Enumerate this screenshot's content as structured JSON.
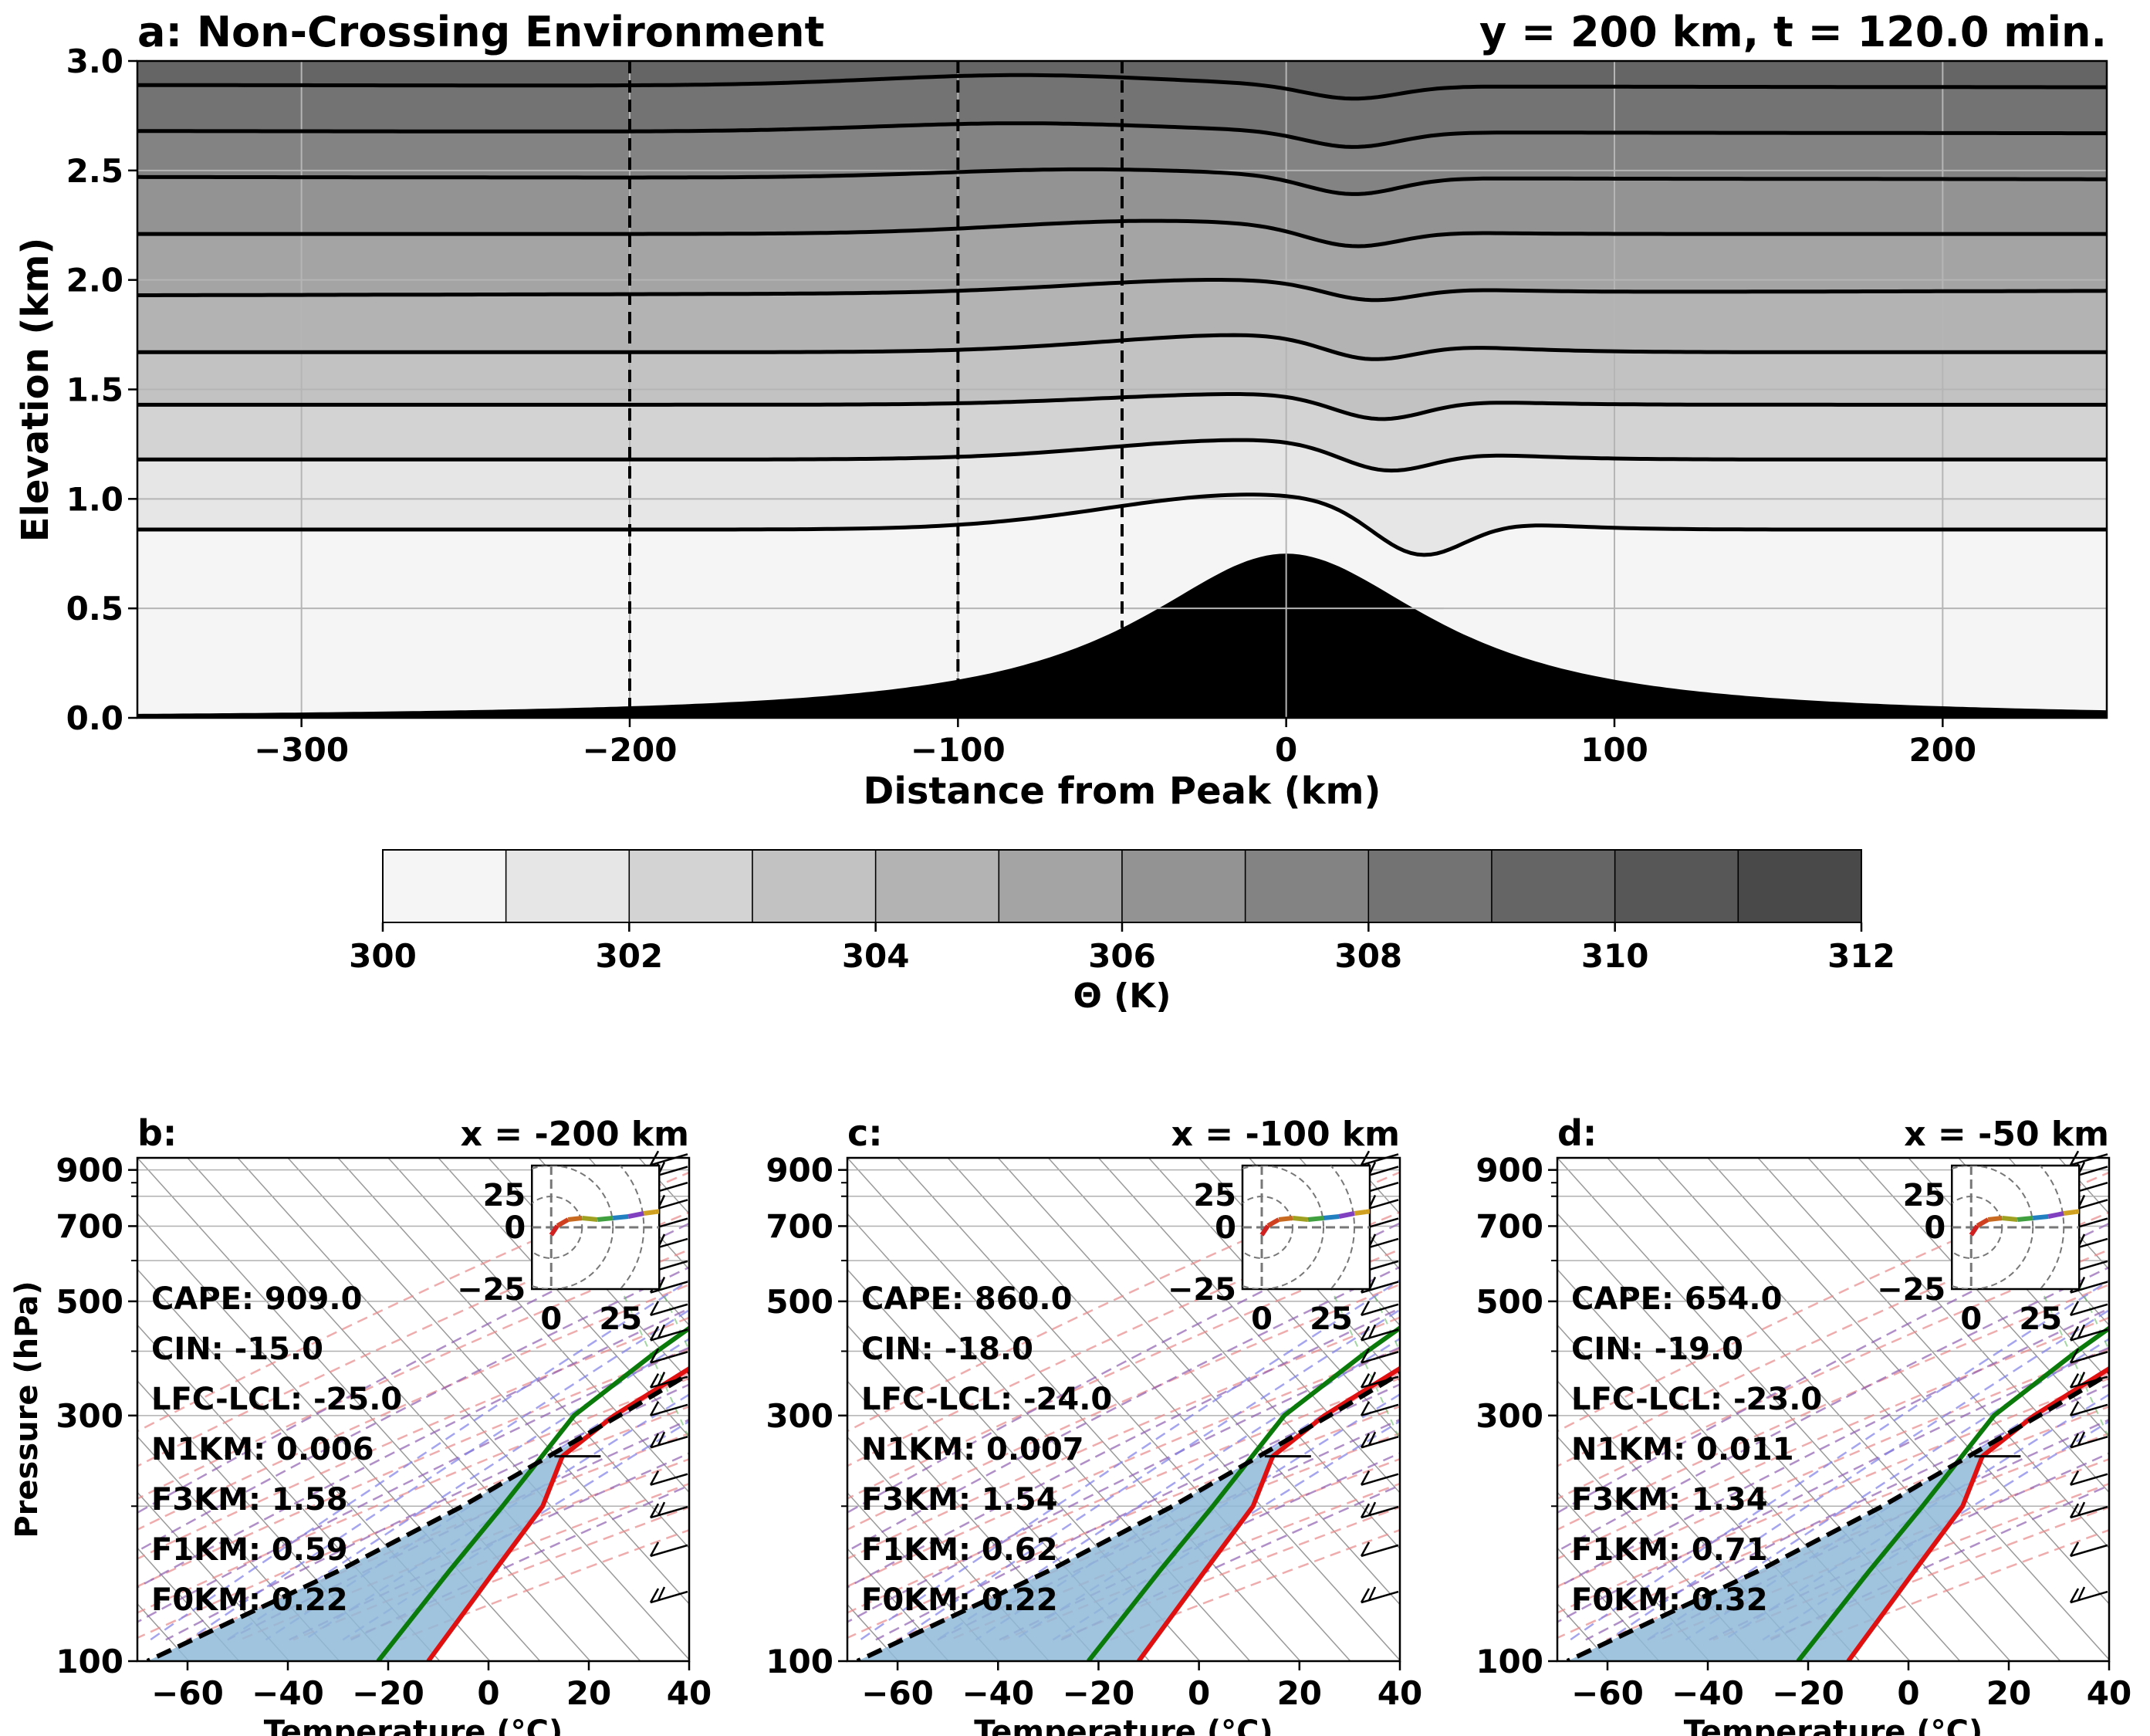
{
  "main_panel": {
    "title_left": "a: Non-Crossing Environment",
    "title_right": "y = 200 km, t = 120.0 min.",
    "xlabel": "Distance from Peak (km)",
    "ylabel": "Elevation (km)"
  },
  "colorbar": {
    "label": "Θ (K)",
    "ticks": [
      "300",
      "302",
      "304",
      "306",
      "308",
      "310",
      "312"
    ],
    "levels": [
      300,
      301,
      302,
      303,
      304,
      305,
      306,
      307,
      308,
      309,
      310,
      311,
      312
    ],
    "colors": [
      "#f5f5f5",
      "#e6e6e6",
      "#d3d3d3",
      "#c2c2c2",
      "#b3b3b3",
      "#a4a4a4",
      "#939393",
      "#838383",
      "#737373",
      "#656565",
      "#575757",
      "#494949"
    ]
  },
  "soundings": [
    {
      "panel": "b:",
      "title": "x = -200 km",
      "x_value": -200,
      "cape": "CAPE: 909.0",
      "cin": "CIN: -15.0",
      "lfc_lcl": "LFC-LCL: -25.0",
      "n1km": "N1KM: 0.006",
      "f3km": "F3KM: 1.58",
      "f1km": "F1KM: 0.59",
      "f0km": "F0KM: 0.22",
      "show_ylabel": true,
      "temp": [
        [
          900,
          19
        ],
        [
          850,
          16
        ],
        [
          700,
          9
        ],
        [
          600,
          3
        ],
        [
          500,
          -3
        ],
        [
          400,
          -10
        ],
        [
          300,
          -19
        ],
        [
          250,
          -22
        ],
        [
          200,
          -17
        ],
        [
          150,
          -15
        ],
        [
          100,
          -12
        ]
      ],
      "dewp": [
        [
          900,
          18
        ],
        [
          850,
          15
        ],
        [
          700,
          3
        ],
        [
          600,
          -12
        ],
        [
          500,
          -17
        ],
        [
          400,
          -22
        ],
        [
          300,
          -27
        ],
        [
          200,
          -25
        ],
        [
          150,
          -24
        ],
        [
          100,
          -22
        ]
      ],
      "parcel": [
        [
          950,
          24
        ],
        [
          900,
          20
        ],
        [
          800,
          15
        ],
        [
          700,
          10
        ],
        [
          600,
          5
        ],
        [
          500,
          -1
        ],
        [
          400,
          -8
        ],
        [
          300,
          -18
        ],
        [
          200,
          -33
        ],
        [
          150,
          -46
        ],
        [
          100,
          -68
        ]
      ]
    },
    {
      "panel": "c:",
      "title": "x = -100 km",
      "x_value": -100,
      "cape": "CAPE: 860.0",
      "cin": "CIN: -18.0",
      "lfc_lcl": "LFC-LCL: -24.0",
      "n1km": "N1KM: 0.007",
      "f3km": "F3KM: 1.54",
      "f1km": "F1KM: 0.62",
      "f0km": "F0KM: 0.22",
      "show_ylabel": false,
      "temp": [
        [
          900,
          19
        ],
        [
          850,
          16
        ],
        [
          700,
          9
        ],
        [
          600,
          3
        ],
        [
          500,
          -3
        ],
        [
          400,
          -10
        ],
        [
          300,
          -19
        ],
        [
          250,
          -22
        ],
        [
          200,
          -17
        ],
        [
          150,
          -15
        ],
        [
          100,
          -12
        ]
      ],
      "dewp": [
        [
          900,
          18
        ],
        [
          850,
          14
        ],
        [
          700,
          3
        ],
        [
          600,
          -12
        ],
        [
          500,
          -17
        ],
        [
          400,
          -22
        ],
        [
          300,
          -27
        ],
        [
          200,
          -25
        ],
        [
          150,
          -24
        ],
        [
          100,
          -22
        ]
      ],
      "parcel": [
        [
          950,
          24
        ],
        [
          900,
          20
        ],
        [
          800,
          15
        ],
        [
          700,
          10
        ],
        [
          600,
          5
        ],
        [
          500,
          -1
        ],
        [
          400,
          -8
        ],
        [
          300,
          -18
        ],
        [
          200,
          -33
        ],
        [
          150,
          -46
        ],
        [
          100,
          -68
        ]
      ]
    },
    {
      "panel": "d:",
      "title": "x = -50 km",
      "x_value": -50,
      "cape": "CAPE: 654.0",
      "cin": "CIN: -19.0",
      "lfc_lcl": "LFC-LCL: -23.0",
      "n1km": "N1KM: 0.011",
      "f3km": "F3KM: 1.34",
      "f1km": "F1KM: 0.71",
      "f0km": "F0KM: 0.32",
      "show_ylabel": false,
      "temp": [
        [
          900,
          19
        ],
        [
          850,
          16
        ],
        [
          700,
          9
        ],
        [
          600,
          3
        ],
        [
          500,
          -3
        ],
        [
          400,
          -10
        ],
        [
          300,
          -19
        ],
        [
          250,
          -22
        ],
        [
          200,
          -17
        ],
        [
          150,
          -15
        ],
        [
          100,
          -12
        ]
      ],
      "dewp": [
        [
          900,
          18
        ],
        [
          850,
          14
        ],
        [
          700,
          3
        ],
        [
          600,
          -12
        ],
        [
          500,
          -17
        ],
        [
          400,
          -22
        ],
        [
          300,
          -27
        ],
        [
          200,
          -25
        ],
        [
          150,
          -24
        ],
        [
          100,
          -22
        ]
      ],
      "parcel": [
        [
          950,
          24
        ],
        [
          900,
          20
        ],
        [
          800,
          15
        ],
        [
          700,
          10
        ],
        [
          600,
          5
        ],
        [
          500,
          -1
        ],
        [
          400,
          -8
        ],
        [
          300,
          -18
        ],
        [
          200,
          -33
        ],
        [
          150,
          -46
        ],
        [
          100,
          -68
        ]
      ]
    }
  ],
  "sounding_axes": {
    "xlabel": "Temperature (°C)",
    "ylabel": "Pressure (hPa)",
    "xticks": [
      "−60",
      "−40",
      "−20",
      "0",
      "20",
      "40"
    ],
    "yticks": [
      "100",
      "300",
      "500",
      "700",
      "900"
    ],
    "hodo_ticks": [
      "25",
      "0",
      "−25"
    ],
    "hodo_xticks": [
      "0",
      "25"
    ]
  },
  "chart_data": [
    {
      "type": "contour",
      "title": "a: Non-Crossing Environment",
      "subtitle": "y = 200 km, t = 120.0 min.",
      "xlabel": "Distance from Peak (km)",
      "ylabel": "Elevation (km)",
      "xlim": [
        -350,
        250
      ],
      "ylim": [
        0,
        3.0
      ],
      "xticks": [
        -300,
        -200,
        -100,
        0,
        100,
        200
      ],
      "yticks": [
        0.0,
        0.5,
        1.0,
        1.5,
        2.0,
        2.5,
        3.0
      ],
      "grid": true,
      "terrain": {
        "peak_height_km": 0.75,
        "peak_x_km": 0
      },
      "dashed_lines_x": [
        -200,
        -100,
        -50
      ],
      "isentropes": [
        {
          "theta": 301,
          "upstream_z": 0.86,
          "downstream_z": 0.86,
          "crest_x": -10,
          "crest_z": 1.02,
          "trough_x": 40,
          "trough_z": 0.66
        },
        {
          "theta": 302,
          "upstream_z": 1.18,
          "downstream_z": 1.18,
          "crest_x": -10,
          "crest_z": 1.27,
          "trough_x": 30,
          "trough_z": 1.07
        },
        {
          "theta": 303,
          "upstream_z": 1.43,
          "downstream_z": 1.43,
          "crest_x": -10,
          "crest_z": 1.48,
          "trough_x": 28,
          "trough_z": 1.33
        },
        {
          "theta": 304,
          "upstream_z": 1.67,
          "downstream_z": 1.67,
          "crest_x": -10,
          "crest_z": 1.75,
          "trough_x": 25,
          "trough_z": 1.58
        },
        {
          "theta": 305,
          "upstream_z": 1.93,
          "downstream_z": 1.95,
          "crest_x": -20,
          "crest_z": 1.99,
          "trough_x": 25,
          "trough_z": 1.86
        },
        {
          "theta": 306,
          "upstream_z": 2.21,
          "downstream_z": 2.21,
          "crest_x": -40,
          "crest_z": 2.27,
          "trough_x": 20,
          "trough_z": 2.13
        },
        {
          "theta": 307,
          "upstream_z": 2.47,
          "downstream_z": 2.46,
          "crest_x": -60,
          "crest_z": 2.51,
          "trough_x": 20,
          "trough_z": 2.39
        },
        {
          "theta": 308,
          "upstream_z": 2.68,
          "downstream_z": 2.67,
          "crest_x": -80,
          "crest_z": 2.72,
          "trough_x": 20,
          "trough_z": 2.61
        },
        {
          "theta": 309,
          "upstream_z": 2.89,
          "downstream_z": 2.88,
          "crest_x": -80,
          "crest_z": 2.94,
          "trough_x": 20,
          "trough_z": 2.83
        }
      ]
    },
    {
      "type": "skew-T",
      "panels": [
        "b:",
        "c:",
        "d:"
      ],
      "titles": [
        "x = -200 km",
        "x = -100 km",
        "x = -50 km"
      ],
      "xlabel": "Temperature (°C)",
      "ylabel": "Pressure (hPa)",
      "xlim": [
        -70,
        40
      ],
      "ylim": [
        950,
        100
      ],
      "yscale": "log",
      "series": [
        "temperature (red)",
        "dewpoint (green)",
        "parcel (black dashed)"
      ]
    }
  ]
}
